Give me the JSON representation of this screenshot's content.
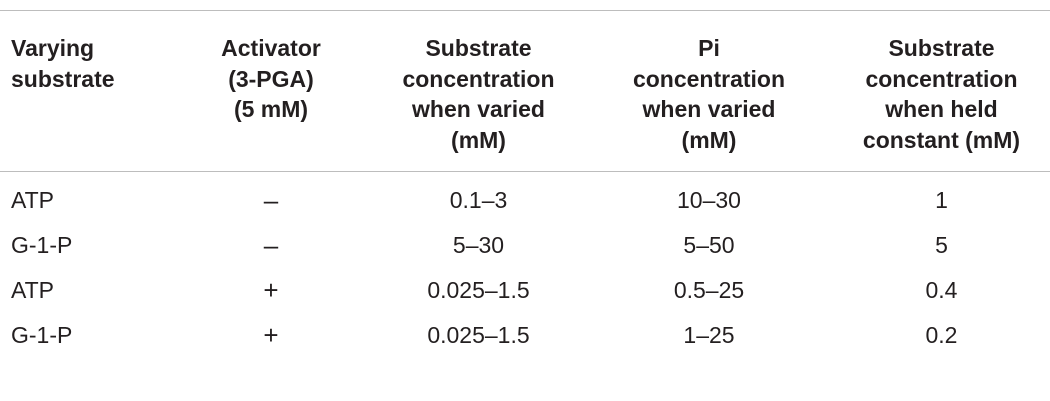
{
  "table": {
    "headers": [
      "Varying\nsubstrate",
      "Activator\n(3-PGA)\n(5 mM)",
      "Substrate\nconcentration\nwhen varied\n(mM)",
      "Pi\nconcentration\nwhen varied\n(mM)",
      "Substrate\nconcentration\nwhen held\nconstant (mM)"
    ],
    "rows": [
      [
        "ATP",
        "–",
        "0.1–3",
        "10–30",
        "1"
      ],
      [
        "G-1-P",
        "–",
        "5–30",
        "5–50",
        "5"
      ],
      [
        "ATP",
        "+",
        "0.025–1.5",
        "0.5–25",
        "0.4"
      ],
      [
        "G-1-P",
        "+",
        "0.025–1.5",
        "1–25",
        "0.2"
      ]
    ]
  }
}
